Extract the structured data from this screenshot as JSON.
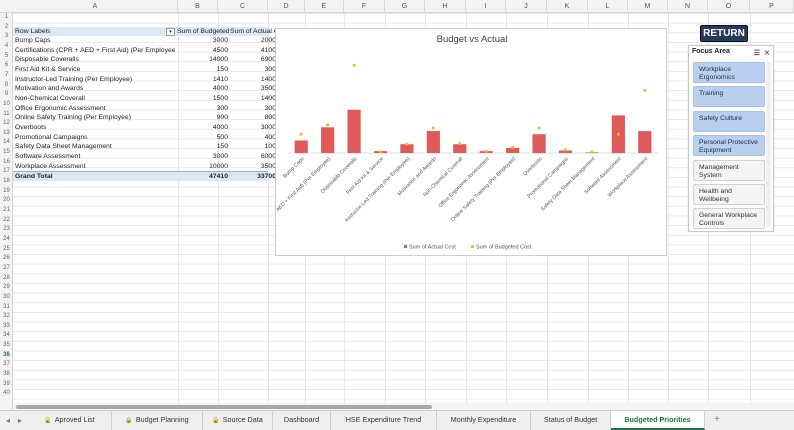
{
  "columns": [
    "A",
    "B",
    "C",
    "D",
    "E",
    "F",
    "G",
    "H",
    "I",
    "J",
    "K",
    "L",
    "M",
    "N",
    "O",
    "P"
  ],
  "rows_visible": 40,
  "selected_row": 36,
  "pivot": {
    "header": {
      "label": "Row Labels",
      "col_b": "Sum of Budgeted Cost",
      "col_c": "Sum of Actual Cost"
    },
    "rows": [
      {
        "label": "Bump Caps",
        "budget": "3000",
        "actual": "2000"
      },
      {
        "label": "Certifications (CPR + AED + First Aid) (Per Employee)",
        "budget": "4500",
        "actual": "4100"
      },
      {
        "label": "Disposable Coveralls",
        "budget": "14000",
        "actual": "6900"
      },
      {
        "label": "First Aid Kit & Service",
        "budget": "150",
        "actual": "300"
      },
      {
        "label": "Instructor-Led Training (Per Employee)",
        "budget": "1410",
        "actual": "1400"
      },
      {
        "label": "Motivation and Awards",
        "budget": "4000",
        "actual": "3500"
      },
      {
        "label": "Non-Chemical Coverall",
        "budget": "1500",
        "actual": "1400"
      },
      {
        "label": "Office Ergonomic Assessment",
        "budget": "300",
        "actual": "300"
      },
      {
        "label": "Online Safety Training (Per Employee)",
        "budget": "900",
        "actual": "800"
      },
      {
        "label": "Overboots",
        "budget": "4000",
        "actual": "3000"
      },
      {
        "label": "Promotional Campaigns",
        "budget": "500",
        "actual": "400"
      },
      {
        "label": "Safety Data Sheet Management",
        "budget": "150",
        "actual": "100"
      },
      {
        "label": "Software Assessment",
        "budget": "3000",
        "actual": "6000"
      },
      {
        "label": "Workplace Assessment",
        "budget": "10000",
        "actual": "3500"
      }
    ],
    "total": {
      "label": "Grand Total",
      "budget": "47410",
      "actual": "33700"
    }
  },
  "chart_data": {
    "type": "bar",
    "title": "Budget vs Actual",
    "categories": [
      "Bump Caps",
      "Certifications (CPR + AED + First Aid) (Per Employee)",
      "Disposable Coveralls",
      "First Aid Kit & Service",
      "Instructor-Led Training (Per Employee)",
      "Motivation and Awards",
      "Non-Chemical Coverall",
      "Office Ergonomic Assessment",
      "Online Safety Training (Per Employee)",
      "Overboots",
      "Promotional Campaigns",
      "Safety Data Sheet Management",
      "Software Assessment",
      "Workplace Assessment"
    ],
    "series": [
      {
        "name": "Sum of Actual Cost",
        "kind": "bar",
        "color": "#e05a5a",
        "values": [
          2000,
          4100,
          6900,
          300,
          1400,
          3500,
          1400,
          300,
          800,
          3000,
          400,
          100,
          6000,
          3500
        ]
      },
      {
        "name": "Sum of Budgeted Cost",
        "kind": "marker",
        "color": "#f5b82e",
        "values": [
          3000,
          4500,
          14000,
          150,
          1410,
          4000,
          1500,
          300,
          900,
          4000,
          500,
          150,
          3000,
          10000
        ]
      }
    ],
    "ylim": [
      0,
      15000
    ],
    "grid": false,
    "legend": "bottom"
  },
  "return_button": {
    "label": "RETURN"
  },
  "slicer": {
    "title": "Focus Area",
    "items": [
      {
        "label": "Workplace Ergonomics",
        "selected": true
      },
      {
        "label": "Training",
        "selected": true
      },
      {
        "label": "Safety Culture",
        "selected": true
      },
      {
        "label": "Personal Protective Equipment",
        "selected": true
      },
      {
        "label": "Management System",
        "selected": false
      },
      {
        "label": "Health and Wellbeing",
        "selected": false
      },
      {
        "label": "General Workplace Controls",
        "selected": false
      }
    ]
  },
  "tabs": [
    {
      "label": "Aproved List",
      "locked": true,
      "active": false
    },
    {
      "label": "Budget Planning",
      "locked": true,
      "active": false
    },
    {
      "label": "Source Data",
      "locked": true,
      "active": false
    },
    {
      "label": "Dashboard",
      "locked": false,
      "active": false
    },
    {
      "label": "HSE Expenditure Trend",
      "locked": false,
      "active": false
    },
    {
      "label": "Monthly Expenditure",
      "locked": false,
      "active": false
    },
    {
      "label": "Status of Budget",
      "locked": false,
      "active": false
    },
    {
      "label": "Budgeted Priorities",
      "locked": false,
      "active": true
    }
  ],
  "colors": {
    "accent": "#1e7145",
    "slicer_selected": "#b9cff0",
    "return_bg": "#233a5e"
  }
}
